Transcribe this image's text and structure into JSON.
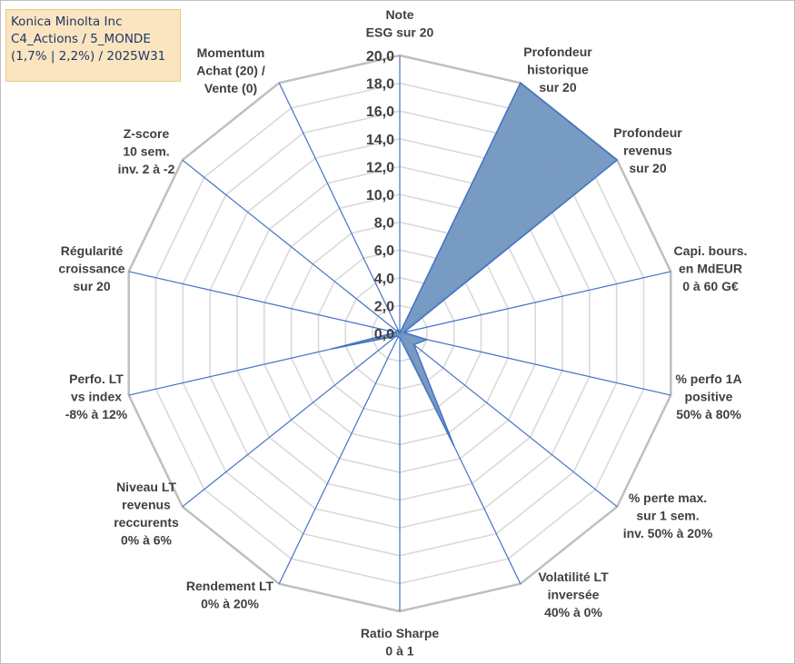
{
  "title_box": {
    "line1": "Konica Minolta Inc",
    "line2": "C4_Actions / 5_MONDE",
    "line3": "(1,7% | 2,2%) / 2025W31"
  },
  "chart_data": {
    "type": "radar",
    "rmax": 20,
    "ticks": [
      "0,0",
      "2,0",
      "4,0",
      "6,0",
      "8,0",
      "10,0",
      "12,0",
      "14,0",
      "16,0",
      "18,0",
      "20,0"
    ],
    "axes": [
      {
        "label": [
          "Note",
          "ESG sur 20"
        ],
        "value": 0
      },
      {
        "label": [
          "Profondeur",
          "historique",
          "sur 20"
        ],
        "value": 20
      },
      {
        "label": [
          "Profondeur",
          "revenus",
          "sur 20"
        ],
        "value": 20
      },
      {
        "label": [
          "Capi. bours.",
          "en MdEUR",
          "0 à 60 G€"
        ],
        "value": 0.3
      },
      {
        "label": [
          "% perfo 1A",
          "positive",
          "50% à 80%"
        ],
        "value": 2
      },
      {
        "label": [
          "% perte max.",
          "sur 1 sem.",
          "inv. 50% à 20%"
        ],
        "value": 1.3
      },
      {
        "label": [
          "Volatilité LT",
          "inversée",
          "40% à 0%"
        ],
        "value": 9
      },
      {
        "label": [
          "Ratio Sharpe",
          "0 à 1"
        ],
        "value": 0.3
      },
      {
        "label": [
          "Rendement LT",
          "0% à 20%"
        ],
        "value": 0.3
      },
      {
        "label": [
          "Niveau LT",
          "revenus",
          "reccurents",
          "0% à 6%"
        ],
        "value": 0.3
      },
      {
        "label": [
          "Perfo. LT",
          "vs index",
          "-8% à 12%"
        ],
        "value": 5
      },
      {
        "label": [
          "Régularité",
          "croissance",
          "sur 20"
        ],
        "value": 0.3
      },
      {
        "label": [
          "Z-score",
          "10 sem.",
          "inv. 2 à -2"
        ],
        "value": 0.3
      },
      {
        "label": [
          "Momentum",
          "Achat (20) /",
          "Vente (0)"
        ],
        "value": 0.3
      }
    ],
    "colors": {
      "fill": "#7196c0",
      "stroke": "#4472c4",
      "spoke": "#4472c4",
      "grid": "#d9d9d9",
      "outer": "#bfbfbf"
    }
  }
}
